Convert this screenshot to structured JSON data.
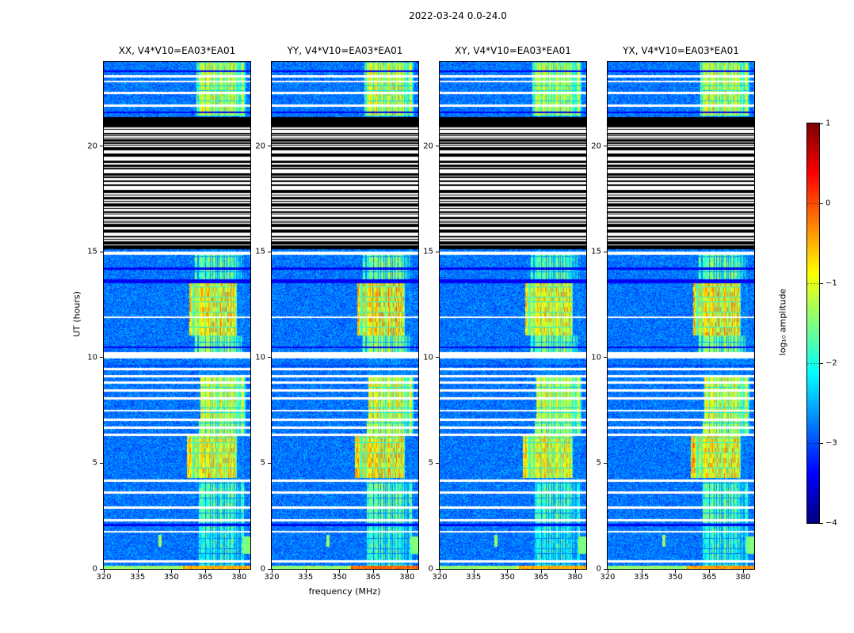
{
  "chart_data": {
    "type": "heatmap",
    "title": "2022-03-24 0.0-24.0",
    "xlabel": "frequency (MHz)",
    "ylabel": "UT (hours)",
    "x_range_mhz": [
      320,
      385
    ],
    "x_ticks": [
      320,
      335,
      350,
      365,
      380
    ],
    "y_range_hours": [
      0,
      24
    ],
    "y_ticks": [
      0,
      5,
      10,
      15,
      20
    ],
    "panels": [
      {
        "label": "XX",
        "title": "XX, V4*V10=EA03*EA01",
        "seed": 11,
        "rfi_gain": 1.0,
        "bottom_boost": 0
      },
      {
        "label": "YY",
        "title": "YY, V4*V10=EA03*EA01",
        "seed": 23,
        "rfi_gain": 1.1,
        "bottom_boost": 0.35
      },
      {
        "label": "XY",
        "title": "XY, V4*V10=EA03*EA01",
        "seed": 37,
        "rfi_gain": 0.92,
        "bottom_boost": 0
      },
      {
        "label": "YX",
        "title": "YX, V4*V10=EA03*EA01",
        "seed": 53,
        "rfi_gain": 1.04,
        "bottom_boost": 0.1
      }
    ],
    "colorbar": {
      "label": "log₁₀ amplitude",
      "ticks": [
        1,
        0,
        -1,
        -2,
        -3,
        -4
      ],
      "vmin": -4,
      "vmax": 1,
      "colormap": "jet"
    },
    "features": {
      "noise_level": -2.8,
      "flagged_black_region_hours": [
        15.18,
        21.35
      ],
      "solid_black_bands_hours": [
        [
          20.98,
          21.35
        ],
        [
          15.18,
          15.3
        ]
      ],
      "white_rows_hours": [
        [
          0.3,
          0.42
        ],
        [
          1.72,
          1.8
        ],
        [
          2.25,
          2.36
        ],
        [
          2.86,
          2.96
        ],
        [
          3.55,
          3.66
        ],
        [
          4.1,
          4.22
        ],
        [
          6.28,
          6.4
        ],
        [
          6.62,
          6.73
        ],
        [
          7.0,
          7.11
        ],
        [
          7.45,
          7.53
        ],
        [
          8.0,
          8.11
        ],
        [
          8.4,
          8.51
        ],
        [
          8.76,
          8.86
        ],
        [
          9.06,
          9.16
        ],
        [
          9.41,
          9.51
        ],
        [
          9.95,
          10.26
        ],
        [
          11.88,
          11.95
        ],
        [
          14.88,
          15.0
        ],
        [
          21.86,
          21.98
        ],
        [
          22.46,
          22.57
        ],
        [
          23.01,
          23.12
        ],
        [
          23.26,
          23.37
        ]
      ],
      "dark_rows_hours": [
        [
          2.04,
          2.12
        ],
        [
          9.58,
          9.64
        ],
        [
          10.44,
          10.52
        ],
        [
          13.5,
          13.72
        ],
        [
          14.16,
          14.26
        ],
        [
          21.56,
          21.64
        ],
        [
          23.5,
          23.57
        ]
      ],
      "rfi_band_mhz": [
        356,
        384
      ],
      "rfi_segments": [
        {
          "t": [
            0.14,
            2.02
          ],
          "f": [
            362,
            383
          ],
          "amp": -2.05
        },
        {
          "t": [
            2.02,
            4.1
          ],
          "f": [
            362,
            383
          ],
          "amp": -1.85
        },
        {
          "t": [
            4.3,
            6.28
          ],
          "f": [
            357,
            379
          ],
          "amp": -0.85
        },
        {
          "t": [
            6.4,
            7.0
          ],
          "f": [
            362,
            383
          ],
          "amp": -1.35
        },
        {
          "t": [
            7.11,
            9.06
          ],
          "f": [
            363,
            383
          ],
          "amp": -1.1
        },
        {
          "t": [
            10.26,
            11.05
          ],
          "f": [
            360,
            381
          ],
          "amp": -1.55
        },
        {
          "t": [
            11.05,
            13.5
          ],
          "f": [
            358,
            379
          ],
          "amp": -0.8
        },
        {
          "t": [
            13.72,
            14.88
          ],
          "f": [
            360,
            381
          ],
          "amp": -1.75
        },
        {
          "t": [
            21.4,
            23.95
          ],
          "f": [
            361,
            383
          ],
          "amp": -1.15
        }
      ],
      "bottom_bright": {
        "t": [
          0,
          0.14
        ],
        "f_split": 355,
        "left_amp": -1.75,
        "right_amp": -0.72
      },
      "streaks": [
        {
          "f": [
            344.2,
            345.6
          ],
          "t": [
            1.05,
            1.62
          ],
          "amp": -1.35
        },
        {
          "f": [
            381.6,
            385
          ],
          "t": [
            0.72,
            1.55
          ],
          "amp": -1.5
        }
      ]
    }
  }
}
